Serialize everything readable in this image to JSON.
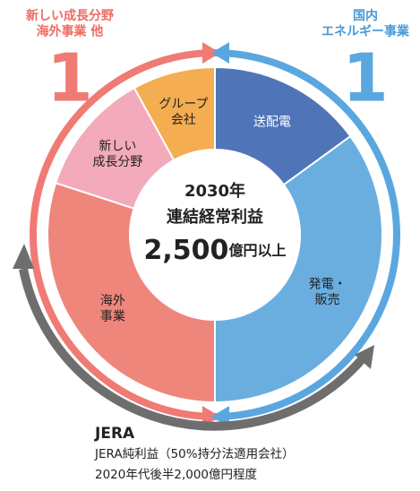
{
  "chart_data": {
    "type": "pie",
    "center_lines": [
      "2030年",
      "連結経常利益"
    ],
    "center_value": "2,500",
    "center_unit": "億円以上",
    "left_label": "新しい成長分野\n海外事業 他",
    "left_number": "1",
    "right_label": "国内\nエネルギー事業",
    "right_number": "1",
    "bottom_title": "JERA",
    "bottom_lines": [
      "JERA純利益（50%持分法適用会社）",
      "2020年代後半2,000億円程度"
    ],
    "categories": [
      "送配電",
      "発電・\n販売",
      "海外\n事業",
      "新しい\n成長分野",
      "グループ\n会社"
    ],
    "values": [
      15,
      35,
      30,
      12,
      8
    ],
    "colors": [
      "#4f74b8",
      "#6aaee0",
      "#ef867c",
      "#f3aabb",
      "#f5ad52"
    ],
    "label_colors": [
      "#ffffff",
      "#222222",
      "#222222",
      "#222222",
      "#222222"
    ]
  }
}
